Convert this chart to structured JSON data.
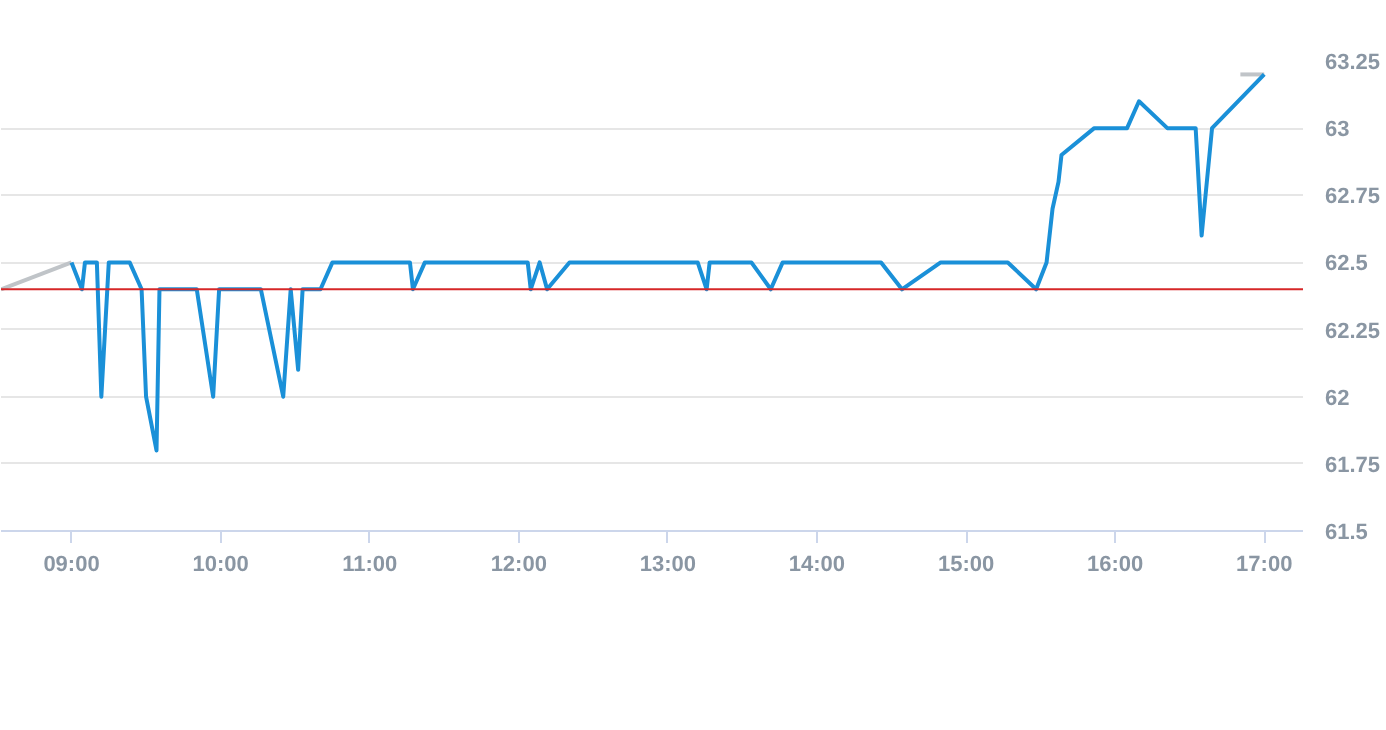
{
  "chart_data": {
    "type": "line",
    "xlim": [
      8.527,
      17.26
    ],
    "ylim": [
      61.5,
      63.25
    ],
    "xticks": [
      {
        "value": 9,
        "label": "09:00"
      },
      {
        "value": 10,
        "label": "10:00"
      },
      {
        "value": 11,
        "label": "11:00"
      },
      {
        "value": 12,
        "label": "12:00"
      },
      {
        "value": 13,
        "label": "13:00"
      },
      {
        "value": 14,
        "label": "14:00"
      },
      {
        "value": 15,
        "label": "15:00"
      },
      {
        "value": 16,
        "label": "16:00"
      },
      {
        "value": 17,
        "label": "17:00"
      }
    ],
    "yticks": [
      61.5,
      61.75,
      62,
      62.25,
      62.5,
      62.75,
      63,
      63.25
    ],
    "grid": "y",
    "ref_lines": [
      {
        "axis": "y",
        "value": 62.4,
        "color": "#d62728"
      }
    ],
    "series": [
      {
        "color": "#c0c4c8",
        "x": [
          8.527,
          9.0
        ],
        "values": [
          62.4,
          62.5
        ]
      },
      {
        "color": "#c0c4c8",
        "x": [
          16.84,
          17.0
        ],
        "values": [
          63.2,
          63.2
        ]
      },
      {
        "color": "#1a90d8",
        "x": [
          9.0,
          9.07,
          9.09,
          9.17,
          9.2,
          9.25,
          9.39,
          9.47,
          9.5,
          9.57,
          9.59,
          9.84,
          9.95,
          9.99,
          10.27,
          10.42,
          10.47,
          10.52,
          10.55,
          10.67,
          10.75,
          11.27,
          11.29,
          11.37,
          12.06,
          12.08,
          12.14,
          12.19,
          12.34,
          13.2,
          13.26,
          13.28,
          13.56,
          13.69,
          13.77,
          14.43,
          14.57,
          14.83,
          15.28,
          15.47,
          15.54,
          15.58,
          15.62,
          15.64,
          15.86,
          16.08,
          16.16,
          16.35,
          16.54,
          16.58,
          16.65,
          17.0
        ],
        "values": [
          62.5,
          62.4,
          62.5,
          62.5,
          62.0,
          62.5,
          62.5,
          62.4,
          62.0,
          61.8,
          62.4,
          62.4,
          62.0,
          62.4,
          62.4,
          62.0,
          62.4,
          62.1,
          62.4,
          62.4,
          62.5,
          62.5,
          62.4,
          62.5,
          62.5,
          62.4,
          62.5,
          62.4,
          62.5,
          62.5,
          62.4,
          62.5,
          62.5,
          62.4,
          62.5,
          62.5,
          62.4,
          62.5,
          62.5,
          62.4,
          62.5,
          62.7,
          62.8,
          62.9,
          63.0,
          63.0,
          63.1,
          63.0,
          63.0,
          62.6,
          63.0,
          63.2
        ]
      }
    ]
  }
}
